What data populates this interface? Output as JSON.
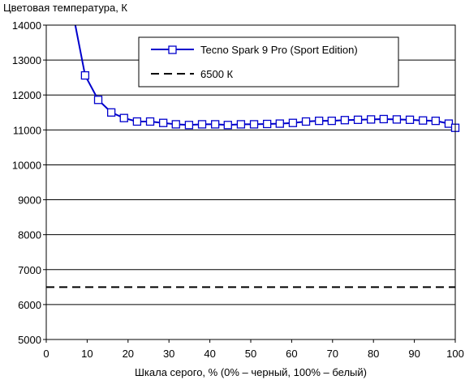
{
  "chart_data": {
    "type": "line",
    "title": "",
    "ylabel": "Цветовая температура, К",
    "xlabel": "Шкала серого, % (0% – черный, 100% – белый)",
    "xlim": [
      0,
      100
    ],
    "ylim": [
      5000,
      14000
    ],
    "x_ticks": [
      "0",
      "10",
      "20",
      "30",
      "40",
      "50",
      "60",
      "70",
      "80",
      "90",
      "100"
    ],
    "y_ticks": [
      "5000",
      "6000",
      "7000",
      "8000",
      "9000",
      "10000",
      "11000",
      "12000",
      "13000",
      "14000"
    ],
    "grid": "horizontal",
    "legend_position": "top-right",
    "series": [
      {
        "name": "Tecno Spark 9 Pro (Sport Edition)",
        "color": "#0000cc",
        "marker": "square-open",
        "x": [
          7.1,
          9.5,
          12.7,
          15.9,
          19.0,
          22.2,
          25.4,
          28.6,
          31.7,
          34.9,
          38.1,
          41.3,
          44.4,
          47.6,
          50.8,
          54.0,
          57.1,
          60.3,
          63.5,
          66.7,
          69.8,
          73.0,
          76.2,
          79.4,
          82.5,
          85.7,
          88.9,
          92.1,
          95.2,
          98.4,
          100
        ],
        "y": [
          14000,
          12560,
          11860,
          11500,
          11340,
          11240,
          11240,
          11200,
          11160,
          11140,
          11160,
          11160,
          11140,
          11160,
          11160,
          11170,
          11180,
          11200,
          11240,
          11260,
          11260,
          11280,
          11290,
          11300,
          11310,
          11300,
          11290,
          11270,
          11260,
          11180,
          11060
        ],
        "marker_from_index": 1
      },
      {
        "name": "6500 К",
        "color": "#000000",
        "style": "dashed",
        "x": [
          0,
          100
        ],
        "y": [
          6500,
          6500
        ]
      }
    ]
  }
}
